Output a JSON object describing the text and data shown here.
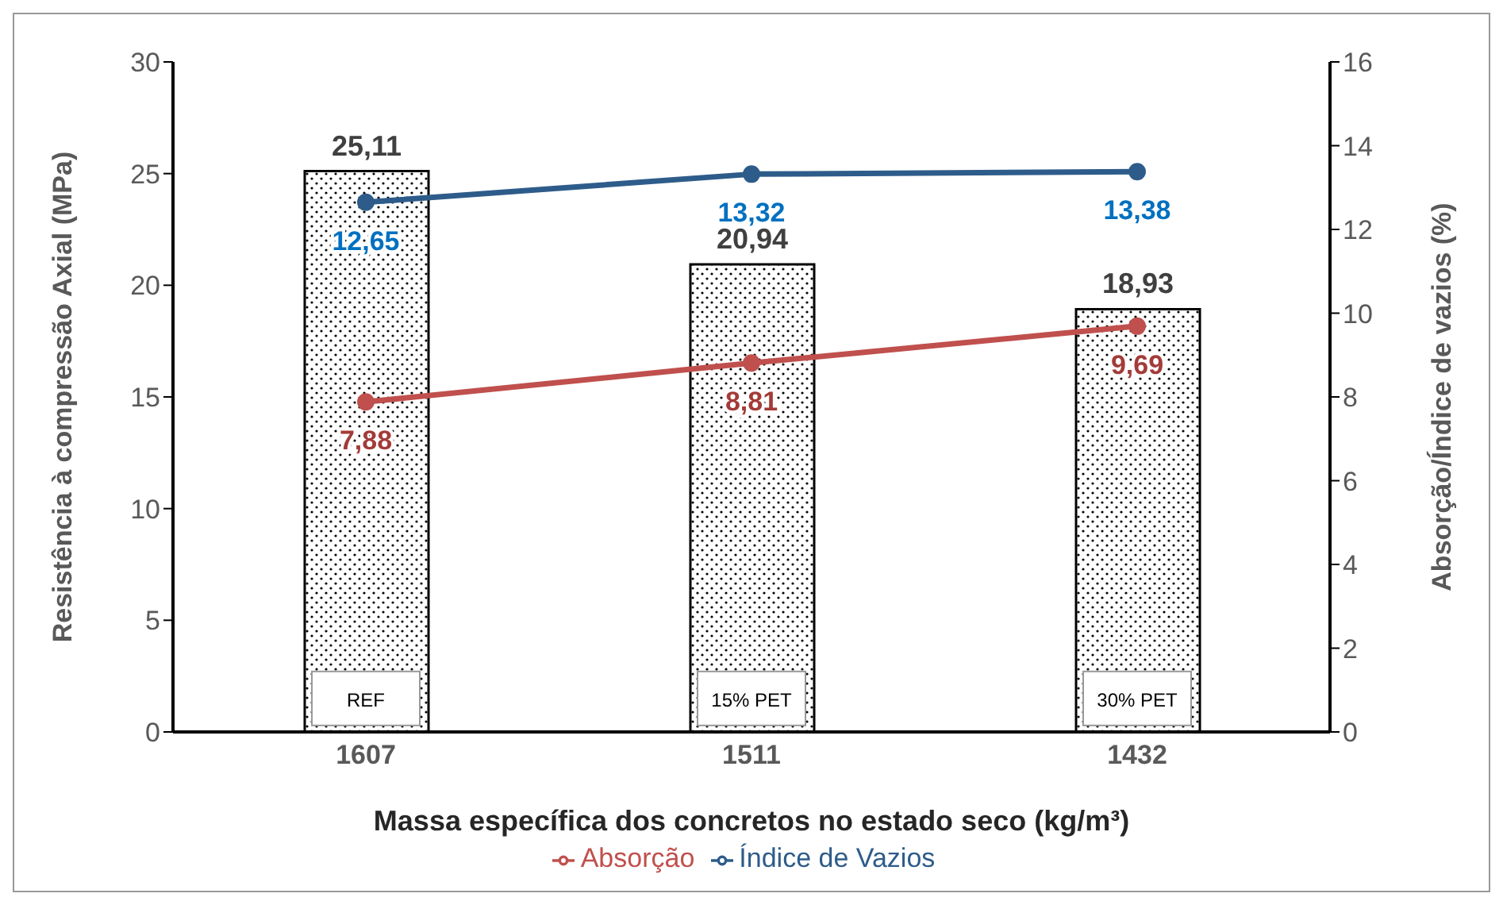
{
  "chart_data": {
    "type": "bar",
    "categories": [
      "1607",
      "1511",
      "1432"
    ],
    "values": [
      25.11,
      20.94,
      18.93
    ],
    "colors": [
      "#000000",
      "#000000",
      "#000000"
    ],
    "value_labels": [
      "25,11",
      "20,94",
      "18,93"
    ],
    "series": [
      {
        "name": "Absorção",
        "type": "line",
        "axis": "y2",
        "color": "#c0504d",
        "values": [
          7.88,
          8.81,
          9.69
        ],
        "value_labels": [
          "7,88",
          "8,81",
          "9,69"
        ]
      },
      {
        "name": "Índice de Vazios",
        "type": "line",
        "axis": "y2",
        "color": "#2e5c8a",
        "values": [
          12.65,
          13.32,
          13.38
        ],
        "value_labels": [
          "12,65",
          "13,32",
          "13,38"
        ]
      }
    ],
    "xlabel": "Massa específica dos concretos no estado seco (kg/m³)",
    "ylabel": "Resistência à compressão Axial (MPa)",
    "y2label": "Absorção/Índice de vazios (%)",
    "ylim": [
      0,
      30
    ],
    "yticks": [
      0,
      5,
      10,
      15,
      20,
      25,
      30
    ],
    "y2lim": [
      0,
      16
    ],
    "y2ticks": [
      0,
      2,
      4,
      6,
      8,
      10,
      12,
      14,
      16
    ],
    "annotations": [
      "REF",
      "15% PET",
      "30% PET"
    ],
    "marker": "circle",
    "legend": "bottom",
    "grid": false
  }
}
